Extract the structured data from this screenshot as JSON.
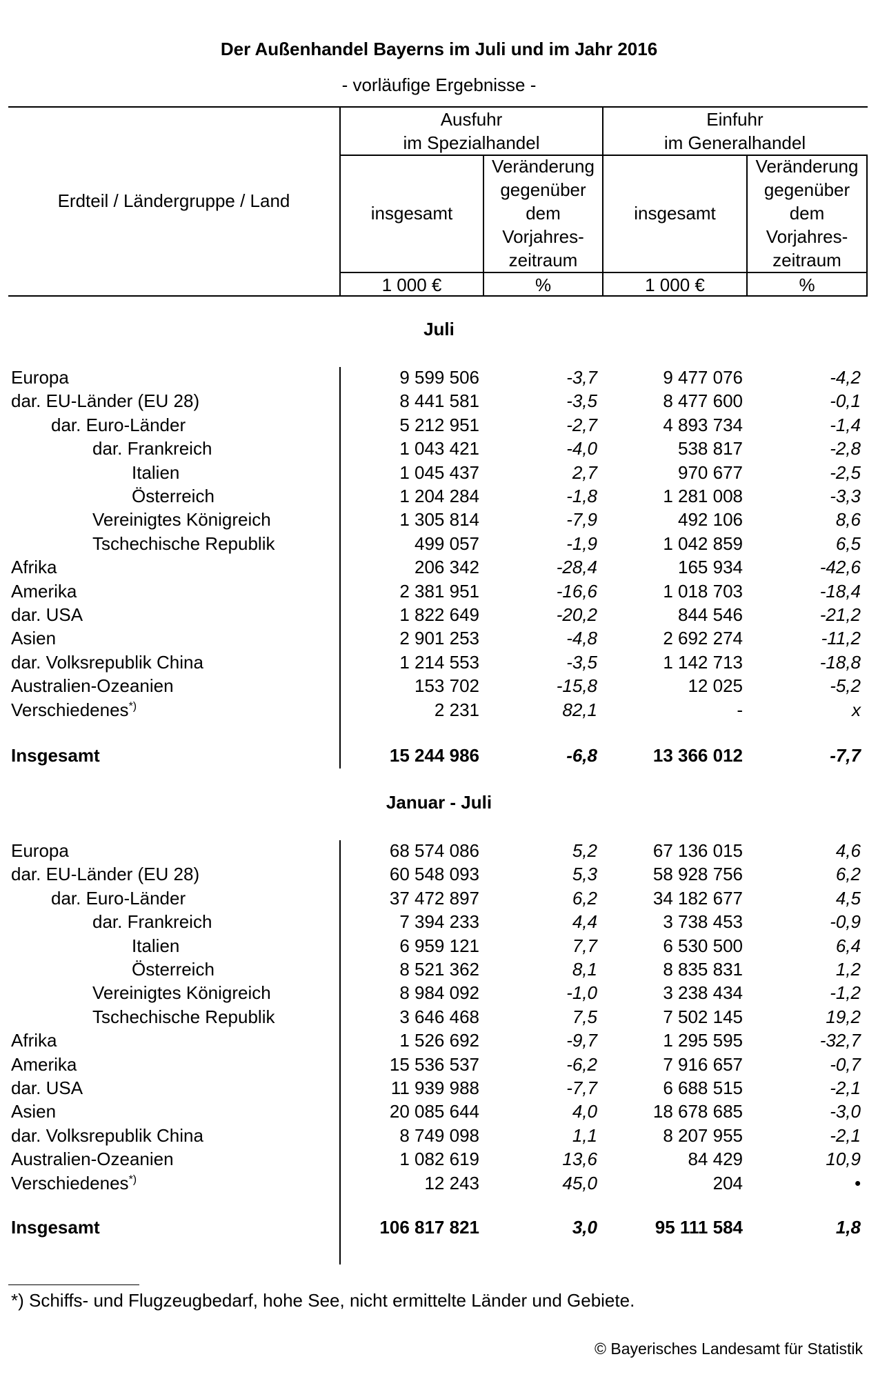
{
  "title": "Der Außenhandel Bayerns im Juli und im Jahr 2016",
  "subtitle": "- vorläufige Ergebnisse -",
  "header": {
    "row_label": "Erdteil / Ländergruppe / Land",
    "export_group": [
      "Ausfuhr",
      "im Spezialhandel"
    ],
    "import_group": [
      "Einfuhr",
      "im Generalhandel"
    ],
    "total": "insgesamt",
    "change": [
      "Veränderung",
      "gegenüber",
      "dem",
      "Vorjahres-",
      "zeitraum"
    ],
    "unit_value": "1 000 €",
    "unit_pct": "%"
  },
  "sections": [
    {
      "title": "Juli",
      "rows": [
        {
          "label": "Europa",
          "indent": 0,
          "exp": "9 599 506",
          "exp_chg": "-3,7",
          "imp": "9 477 076",
          "imp_chg": "-4,2"
        },
        {
          "label": "dar. EU-Länder (EU 28)",
          "indent": 0,
          "exp": "8 441 581",
          "exp_chg": "-3,5",
          "imp": "8 477 600",
          "imp_chg": "-0,1"
        },
        {
          "label": "dar. Euro-Länder",
          "indent": 1,
          "exp": "5 212 951",
          "exp_chg": "-2,7",
          "imp": "4 893 734",
          "imp_chg": "-1,4"
        },
        {
          "label": "dar. Frankreich",
          "indent": 2,
          "exp": "1 043 421",
          "exp_chg": "-4,0",
          "imp": "538 817",
          "imp_chg": "-2,8"
        },
        {
          "label": "Italien",
          "indent": 3,
          "exp": "1 045 437",
          "exp_chg": "2,7",
          "imp": "970 677",
          "imp_chg": "-2,5"
        },
        {
          "label": "Österreich",
          "indent": 3,
          "exp": "1 204 284",
          "exp_chg": "-1,8",
          "imp": "1 281 008",
          "imp_chg": "-3,3"
        },
        {
          "label": "Vereinigtes Königreich",
          "indent": 2,
          "exp": "1 305 814",
          "exp_chg": "-7,9",
          "imp": "492 106",
          "imp_chg": "8,6"
        },
        {
          "label": "Tschechische Republik",
          "indent": 2,
          "exp": "499 057",
          "exp_chg": "-1,9",
          "imp": "1 042 859",
          "imp_chg": "6,5"
        },
        {
          "label": "Afrika",
          "indent": 0,
          "exp": "206 342",
          "exp_chg": "-28,4",
          "imp": "165 934",
          "imp_chg": "-42,6"
        },
        {
          "label": "Amerika",
          "indent": 0,
          "exp": "2 381 951",
          "exp_chg": "-16,6",
          "imp": "1 018 703",
          "imp_chg": "-18,4"
        },
        {
          "label": "dar. USA",
          "indent": 0,
          "exp": "1 822 649",
          "exp_chg": "-20,2",
          "imp": "844 546",
          "imp_chg": "-21,2"
        },
        {
          "label": "Asien",
          "indent": 0,
          "exp": "2 901 253",
          "exp_chg": "-4,8",
          "imp": "2 692 274",
          "imp_chg": "-11,2"
        },
        {
          "label": "dar. Volksrepublik China",
          "indent": 0,
          "exp": "1 214 553",
          "exp_chg": "-3,5",
          "imp": "1 142 713",
          "imp_chg": "-18,8"
        },
        {
          "label": "Australien-Ozeanien",
          "indent": 0,
          "exp": "153 702",
          "exp_chg": "-15,8",
          "imp": "12 025",
          "imp_chg": "-5,2"
        },
        {
          "label": "Verschiedenes",
          "footnote_mark": "*)",
          "indent": 0,
          "exp": "2 231",
          "exp_chg": "82,1",
          "imp": "-",
          "imp_chg": "x"
        }
      ],
      "total": {
        "label": "Insgesamt",
        "exp": "15 244 986",
        "exp_chg": "-6,8",
        "imp": "13 366 012",
        "imp_chg": "-7,7"
      }
    },
    {
      "title": "Januar - Juli",
      "rows": [
        {
          "label": "Europa",
          "indent": 0,
          "exp": "68 574 086",
          "exp_chg": "5,2",
          "imp": "67 136 015",
          "imp_chg": "4,6"
        },
        {
          "label": "dar. EU-Länder (EU 28)",
          "indent": 0,
          "exp": "60 548 093",
          "exp_chg": "5,3",
          "imp": "58 928 756",
          "imp_chg": "6,2"
        },
        {
          "label": "dar. Euro-Länder",
          "indent": 1,
          "exp": "37 472 897",
          "exp_chg": "6,2",
          "imp": "34 182 677",
          "imp_chg": "4,5"
        },
        {
          "label": "dar. Frankreich",
          "indent": 2,
          "exp": "7 394 233",
          "exp_chg": "4,4",
          "imp": "3 738 453",
          "imp_chg": "-0,9"
        },
        {
          "label": "Italien",
          "indent": 3,
          "exp": "6 959 121",
          "exp_chg": "7,7",
          "imp": "6 530 500",
          "imp_chg": "6,4"
        },
        {
          "label": "Österreich",
          "indent": 3,
          "exp": "8 521 362",
          "exp_chg": "8,1",
          "imp": "8 835 831",
          "imp_chg": "1,2"
        },
        {
          "label": "Vereinigtes Königreich",
          "indent": 2,
          "exp": "8 984 092",
          "exp_chg": "-1,0",
          "imp": "3 238 434",
          "imp_chg": "-1,2"
        },
        {
          "label": "Tschechische Republik",
          "indent": 2,
          "exp": "3 646 468",
          "exp_chg": "7,5",
          "imp": "7 502 145",
          "imp_chg": "19,2"
        },
        {
          "label": "Afrika",
          "indent": 0,
          "exp": "1 526 692",
          "exp_chg": "-9,7",
          "imp": "1 295 595",
          "imp_chg": "-32,7"
        },
        {
          "label": "Amerika",
          "indent": 0,
          "exp": "15 536 537",
          "exp_chg": "-6,2",
          "imp": "7 916 657",
          "imp_chg": "-0,7"
        },
        {
          "label": "dar. USA",
          "indent": 0,
          "exp": "11 939 988",
          "exp_chg": "-7,7",
          "imp": "6 688 515",
          "imp_chg": "-2,1"
        },
        {
          "label": "Asien",
          "indent": 0,
          "exp": "20 085 644",
          "exp_chg": "4,0",
          "imp": "18 678 685",
          "imp_chg": "-3,0"
        },
        {
          "label": "dar. Volksrepublik China",
          "indent": 0,
          "exp": "8 749 098",
          "exp_chg": "1,1",
          "imp": "8 207 955",
          "imp_chg": "-2,1"
        },
        {
          "label": "Australien-Ozeanien",
          "indent": 0,
          "exp": "1 082 619",
          "exp_chg": "13,6",
          "imp": "84 429",
          "imp_chg": "10,9"
        },
        {
          "label": "Verschiedenes",
          "footnote_mark": "*)",
          "indent": 0,
          "exp": "12 243",
          "exp_chg": "45,0",
          "imp": "204",
          "imp_chg": "•"
        }
      ],
      "total": {
        "label": "Insgesamt",
        "exp": "106 817 821",
        "exp_chg": "3,0",
        "imp": "95 111 584",
        "imp_chg": "1,8"
      }
    }
  ],
  "footnote": "*) Schiffs- und Flugzeugbedarf, hohe See, nicht ermittelte Länder und Gebiete.",
  "copyright": "© Bayerisches Landesamt für Statistik"
}
